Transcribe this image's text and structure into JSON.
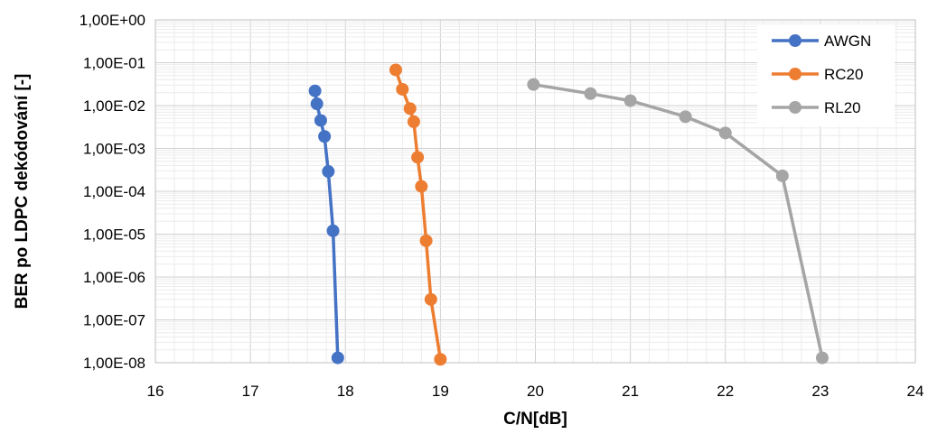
{
  "chart_data": {
    "type": "scatter",
    "xlabel": "C/N[dB]",
    "ylabel": "BER po LDPC dekódování [-]",
    "xlim": [
      16,
      24
    ],
    "xticks": [
      16,
      17,
      18,
      19,
      20,
      21,
      22,
      23,
      24
    ],
    "ylim": [
      1e-08,
      1
    ],
    "yscale": "log",
    "ytick_labels": [
      "1,00E+00",
      "1,00E-01",
      "1,00E-02",
      "1,00E-03",
      "1,00E-04",
      "1,00E-05",
      "1,00E-06",
      "1,00E-07",
      "1,00E-08"
    ],
    "grid": true,
    "legend_position": "top-right",
    "series": [
      {
        "name": "AWGN",
        "color": "#4472C4",
        "x": [
          17.68,
          17.7,
          17.74,
          17.78,
          17.82,
          17.87,
          17.92
        ],
        "y": [
          0.022,
          0.011,
          0.0045,
          0.0019,
          0.00029,
          1.2e-05,
          1.3e-08
        ]
      },
      {
        "name": "RC20",
        "color": "#ED7D31",
        "x": [
          18.53,
          18.6,
          18.68,
          18.72,
          18.76,
          18.8,
          18.85,
          18.9,
          19.0
        ],
        "y": [
          0.068,
          0.024,
          0.0085,
          0.0042,
          0.00062,
          0.00013,
          7e-06,
          3e-07,
          1.2e-08
        ]
      },
      {
        "name": "RL20",
        "color": "#A5A5A5",
        "x": [
          19.98,
          20.58,
          21.0,
          21.58,
          22.0,
          22.6,
          23.02
        ],
        "y": [
          0.031,
          0.019,
          0.013,
          0.0055,
          0.0023,
          0.00023,
          1.3e-08
        ]
      }
    ]
  }
}
